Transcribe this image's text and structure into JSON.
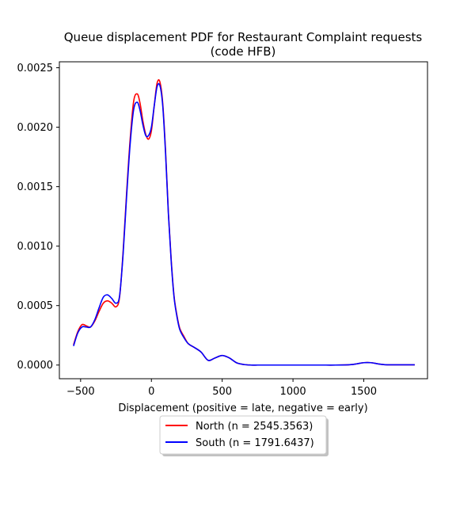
{
  "chart_data": {
    "type": "line",
    "title_line1": "Queue displacement PDF for Restaurant Complaint  requests",
    "title_line2": "(code HFB)",
    "xlabel": "Displacement (positive = late, negative = early)",
    "ylabel": "",
    "xlim": [
      -650,
      1950
    ],
    "ylim": [
      -0.000115,
      0.00255
    ],
    "xticks": [
      -500,
      0,
      500,
      1000,
      1500
    ],
    "xtick_labels": [
      "−500",
      "0",
      "500",
      "1000",
      "1500"
    ],
    "yticks": [
      0.0,
      0.0005,
      0.001,
      0.0015,
      0.002,
      0.0025
    ],
    "ytick_labels": [
      "0.0000",
      "0.0005",
      "0.0010",
      "0.0015",
      "0.0020",
      "0.0025"
    ],
    "legend_position": "below",
    "series": [
      {
        "name": "North (n = 2545.3563)",
        "color": "#ff0000",
        "x": [
          -550,
          -520,
          -490,
          -460,
          -430,
          -400,
          -370,
          -340,
          -310,
          -280,
          -250,
          -225,
          -200,
          -175,
          -150,
          -125,
          -100,
          -80,
          -60,
          -40,
          -20,
          0,
          20,
          40,
          60,
          80,
          100,
          120,
          140,
          160,
          180,
          200,
          230,
          260,
          300,
          350,
          400,
          450,
          500,
          550,
          600,
          650,
          700,
          750,
          800,
          850,
          900,
          950,
          1000,
          1100,
          1200,
          1300,
          1400,
          1450,
          1500,
          1550,
          1600,
          1650,
          1700,
          1750,
          1800,
          1860
        ],
        "y": [
          0.00017,
          0.00028,
          0.00034,
          0.00033,
          0.00032,
          0.00037,
          0.00045,
          0.00052,
          0.00054,
          0.00052,
          0.00049,
          0.00057,
          0.00095,
          0.00145,
          0.0019,
          0.00222,
          0.00228,
          0.0022,
          0.00205,
          0.00194,
          0.0019,
          0.00197,
          0.00218,
          0.00237,
          0.00238,
          0.0022,
          0.0018,
          0.00128,
          0.00088,
          0.00058,
          0.00042,
          0.00031,
          0.00024,
          0.00018,
          0.00015,
          0.00011,
          4e-05,
          6e-05,
          8e-05,
          6e-05,
          2e-05,
          5e-06,
          0.0,
          0.0,
          0.0,
          0.0,
          0.0,
          0.0,
          0.0,
          0.0,
          0.0,
          0.0,
          3e-06,
          1e-05,
          2e-05,
          2e-05,
          1e-05,
          3e-06,
          2e-06,
          2e-06,
          2e-06,
          2e-06
        ]
      },
      {
        "name": "South (n = 1791.6437)",
        "color": "#0000ff",
        "x": [
          -550,
          -520,
          -490,
          -460,
          -430,
          -400,
          -370,
          -340,
          -310,
          -280,
          -250,
          -225,
          -200,
          -175,
          -150,
          -125,
          -100,
          -80,
          -60,
          -40,
          -20,
          0,
          20,
          40,
          60,
          80,
          100,
          120,
          140,
          160,
          180,
          200,
          230,
          260,
          300,
          350,
          400,
          450,
          500,
          550,
          600,
          650,
          700,
          750,
          800,
          850,
          900,
          950,
          1000,
          1100,
          1200,
          1300,
          1400,
          1450,
          1500,
          1550,
          1600,
          1650,
          1700,
          1750,
          1800,
          1860
        ],
        "y": [
          0.00016,
          0.00027,
          0.00032,
          0.00032,
          0.00032,
          0.00038,
          0.00048,
          0.00057,
          0.00059,
          0.00056,
          0.00052,
          0.00058,
          0.00093,
          0.00142,
          0.00186,
          0.00215,
          0.00221,
          0.00214,
          0.00202,
          0.00193,
          0.00193,
          0.002,
          0.00218,
          0.00234,
          0.00235,
          0.00218,
          0.00178,
          0.00127,
          0.00087,
          0.00057,
          0.00041,
          0.0003,
          0.00023,
          0.00018,
          0.00015,
          0.00011,
          4e-05,
          6e-05,
          8e-05,
          6e-05,
          2e-05,
          5e-06,
          0.0,
          0.0,
          0.0,
          0.0,
          0.0,
          0.0,
          0.0,
          0.0,
          0.0,
          0.0,
          3e-06,
          1e-05,
          2e-05,
          2e-05,
          1e-05,
          3e-06,
          2e-06,
          2e-06,
          2e-06,
          2e-06
        ]
      }
    ]
  }
}
